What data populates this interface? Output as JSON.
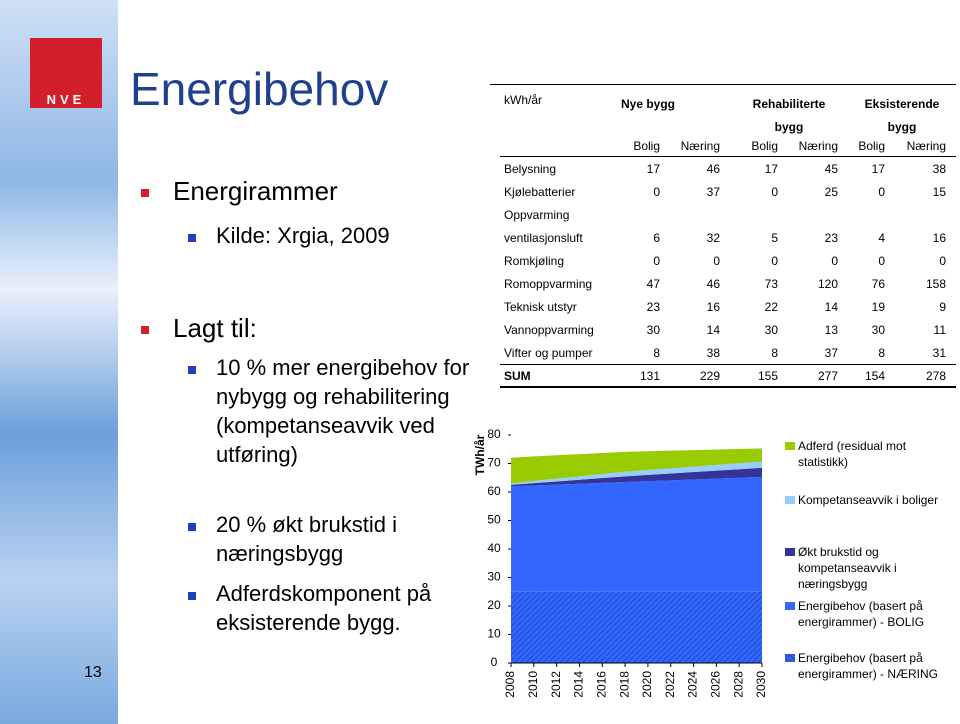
{
  "slide": {
    "title": "Energibehov",
    "page_number": "13",
    "logo": "NVE",
    "bullets": [
      {
        "level": 1,
        "text": "Energirammer"
      },
      {
        "level": 2,
        "text": "Kilde: Xrgia, 2009"
      },
      {
        "level": 1,
        "text": "Lagt til:"
      },
      {
        "level": 2,
        "text": "10 % mer energibehov for nybygg og rehabilitering (kompetanseavvik ved utføring)"
      },
      {
        "level": 2,
        "text": "20 % økt brukstid i næringsbygg"
      },
      {
        "level": 2,
        "text": "Adferdskomponent på eksisterende bygg."
      }
    ]
  },
  "table": {
    "unit": "kWh/år",
    "groups": [
      "Nye bygg",
      "Rehabiliterte bygg",
      "Eksisterende bygg"
    ],
    "subheaders": [
      "Bolig",
      "Næring",
      "Bolig",
      "Næring",
      "Bolig",
      "Næring"
    ],
    "rows": [
      [
        "Belysning",
        17,
        46,
        17,
        45,
        17,
        38
      ],
      [
        "Kjølebatterier",
        0,
        37,
        0,
        25,
        0,
        15
      ],
      [
        "Oppvarming"
      ],
      [
        "ventilasjonsluft",
        6,
        32,
        5,
        23,
        4,
        16
      ],
      [
        "Romkjøling",
        0,
        0,
        0,
        0,
        0,
        0
      ],
      [
        "Romoppvarming",
        47,
        46,
        73,
        120,
        76,
        158
      ],
      [
        "Teknisk utstyr",
        23,
        16,
        22,
        14,
        19,
        9
      ],
      [
        "Vannoppvarming",
        30,
        14,
        30,
        13,
        30,
        11
      ],
      [
        "Vifter og pumper",
        8,
        38,
        8,
        37,
        8,
        31
      ]
    ],
    "sum": [
      "SUM",
      131,
      229,
      155,
      277,
      154,
      278
    ]
  },
  "chart_data": {
    "type": "stacked-area",
    "y_label": "TWh/år",
    "x": [
      2008,
      2010,
      2012,
      2014,
      2016,
      2018,
      2020,
      2022,
      2024,
      2026,
      2028,
      2030
    ],
    "xlim": [
      2008,
      2030
    ],
    "xticks": [
      2008,
      2010,
      2012,
      2014,
      2016,
      2018,
      2020,
      2022,
      2024,
      2026,
      2028,
      2030
    ],
    "ylim": [
      0,
      80
    ],
    "yticks": [
      0,
      10,
      20,
      30,
      40,
      50,
      60,
      70,
      80
    ],
    "series": [
      {
        "name": "Energibehov (basert på energirammer) - NÆRING",
        "color": "#3366ff",
        "hatch": true,
        "values": [
          25,
          25,
          25,
          25,
          25,
          25,
          25,
          25,
          25,
          25,
          25,
          25
        ]
      },
      {
        "name": "Energibehov (basert på energirammer) - BOLIG",
        "color": "#3366ff",
        "hatch": false,
        "values": [
          37,
          37.3,
          37.6,
          37.9,
          38.2,
          38.5,
          38.8,
          39.1,
          39.4,
          39.7,
          40,
          40.3
        ]
      },
      {
        "name": "Økt brukstid og kompetanseavvik i næringsbygg",
        "color": "#333399",
        "hatch": false,
        "values": [
          0.5,
          0.8,
          1.1,
          1.4,
          1.7,
          2,
          2.2,
          2.4,
          2.6,
          2.8,
          3,
          3.2
        ]
      },
      {
        "name": "Kompetanseavvik i boliger",
        "color": "#99ccff",
        "hatch": false,
        "values": [
          0.5,
          0.8,
          1,
          1.2,
          1.4,
          1.6,
          1.7,
          1.8,
          1.9,
          2,
          2.1,
          2.2
        ]
      },
      {
        "name": "Adferd (residual mot statistikk)",
        "color": "#99cc00",
        "hatch": false,
        "values": [
          9,
          8.6,
          8.2,
          7.8,
          7.4,
          7,
          6.6,
          6.2,
          5.8,
          5.4,
          5,
          4.6
        ]
      }
    ]
  }
}
